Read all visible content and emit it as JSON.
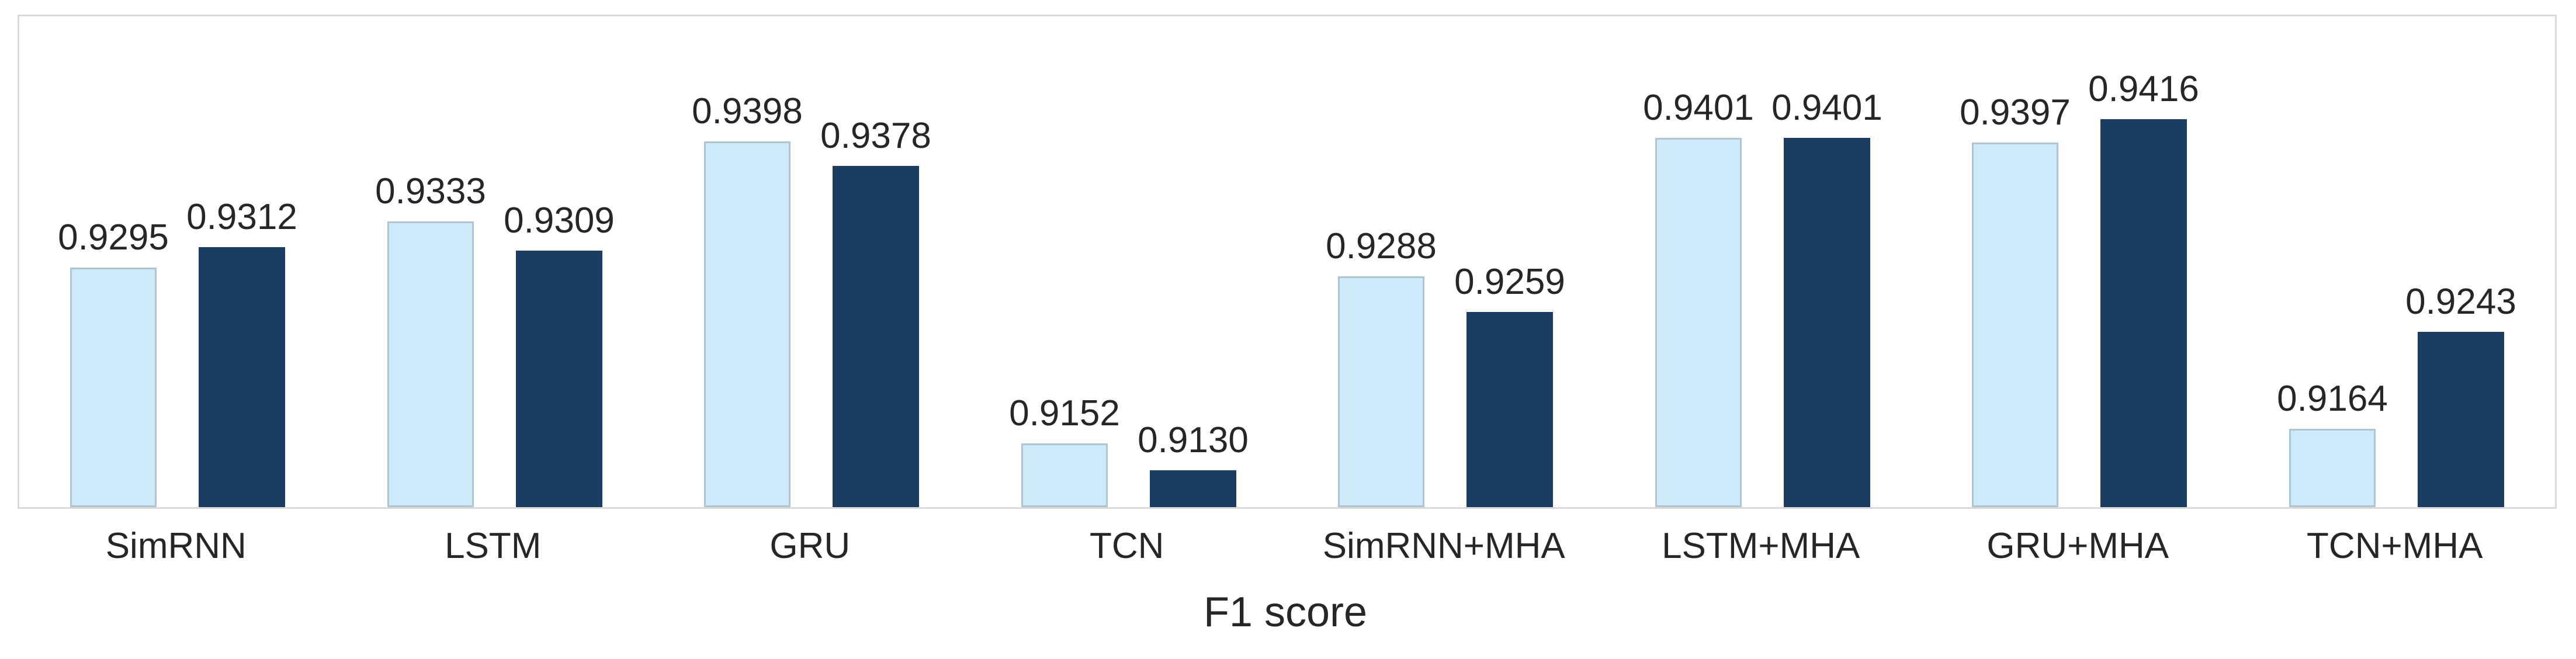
{
  "chart_data": {
    "type": "bar",
    "title": "",
    "xlabel": "F1 score",
    "ylabel": "",
    "ylim": [
      0.91,
      0.95
    ],
    "grid": false,
    "legend": "none",
    "categories": [
      "SimRNN",
      "LSTM",
      "GRU",
      "TCN",
      "SimRNN+MHA",
      "LSTM+MHA",
      "GRU+MHA",
      "TCN+MHA"
    ],
    "series": [
      {
        "name": "series-light",
        "color": "#cdeaf8",
        "border_color": "#aec4d5",
        "values": [
          0.9295,
          0.9333,
          0.9398,
          0.9152,
          0.9288,
          0.9401,
          0.9397,
          0.9164
        ],
        "labels": [
          "0.9295",
          "0.9333",
          "0.9398",
          "0.9152",
          "0.9288",
          "0.9401",
          "0.9397",
          "0.9164"
        ]
      },
      {
        "name": "series-dark",
        "color": "#1b3d61",
        "border_color": "#1b3d61",
        "values": [
          0.9312,
          0.9309,
          0.9378,
          0.913,
          0.9259,
          0.9401,
          0.9416,
          0.9243
        ],
        "labels": [
          "0.9312",
          "0.9309",
          "0.9378",
          "0.9130",
          "0.9259",
          "0.9401",
          "0.9416",
          "0.9243"
        ]
      }
    ],
    "colors": {
      "frame_border": "#d9d9d9",
      "text": "#262626",
      "background": "#ffffff"
    }
  }
}
